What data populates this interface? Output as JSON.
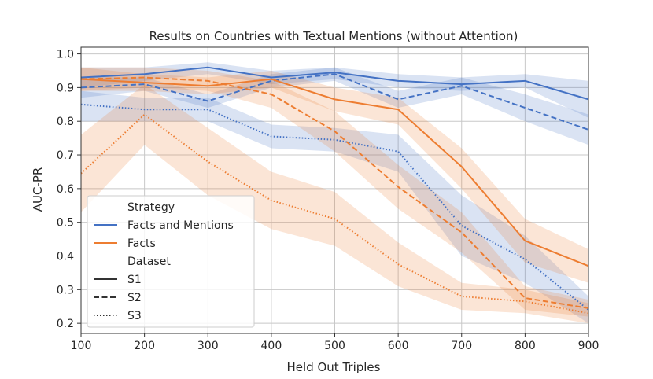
{
  "chart_data": {
    "type": "line",
    "title": "Results on Countries with Textual Mentions (without Attention)",
    "xlabel": "Held Out Triples",
    "ylabel": "AUC-PR",
    "x": [
      100,
      200,
      300,
      400,
      500,
      600,
      700,
      800,
      900
    ],
    "xlim": [
      100,
      900
    ],
    "ylim": [
      0.17,
      1.02
    ],
    "xticks": [
      "100",
      "200",
      "300",
      "400",
      "500",
      "600",
      "700",
      "800",
      "900"
    ],
    "yticks": [
      "0.2",
      "0.3",
      "0.4",
      "0.5",
      "0.6",
      "0.7",
      "0.8",
      "0.9",
      "1.0"
    ],
    "grid": true,
    "legend": {
      "position": "lower-left",
      "strategy_title": "Strategy",
      "dataset_title": "Dataset",
      "strategy_entries": [
        {
          "label": "Facts and Mentions",
          "color": "#4472c4"
        },
        {
          "label": "Facts",
          "color": "#ed7d31"
        }
      ],
      "dataset_entries": [
        {
          "label": "S1",
          "dash": "solid"
        },
        {
          "label": "S2",
          "dash": "dashed"
        },
        {
          "label": "S3",
          "dash": "dotted"
        }
      ]
    },
    "colors": {
      "facts_and_mentions": "#4472c4",
      "facts": "#ed7d31"
    },
    "series": [
      {
        "strategy": "Facts and Mentions",
        "dataset": "S1",
        "color": "#4472c4",
        "dash": "solid",
        "values": [
          0.93,
          0.94,
          0.96,
          0.93,
          0.945,
          0.92,
          0.91,
          0.92,
          0.865
        ],
        "lower": [
          0.9,
          0.92,
          0.94,
          0.91,
          0.925,
          0.9,
          0.89,
          0.9,
          0.81
        ],
        "upper": [
          0.96,
          0.96,
          0.975,
          0.95,
          0.96,
          0.94,
          0.93,
          0.94,
          0.92
        ]
      },
      {
        "strategy": "Facts and Mentions",
        "dataset": "S2",
        "color": "#4472c4",
        "dash": "dashed",
        "values": [
          0.9,
          0.91,
          0.86,
          0.92,
          0.94,
          0.865,
          0.905,
          0.84,
          0.775
        ],
        "lower": [
          0.87,
          0.89,
          0.84,
          0.9,
          0.92,
          0.84,
          0.88,
          0.8,
          0.73
        ],
        "upper": [
          0.93,
          0.93,
          0.88,
          0.94,
          0.96,
          0.89,
          0.93,
          0.88,
          0.82
        ]
      },
      {
        "strategy": "Facts and Mentions",
        "dataset": "S3",
        "color": "#4472c4",
        "dash": "dotted",
        "values": [
          0.85,
          0.835,
          0.835,
          0.755,
          0.745,
          0.71,
          0.49,
          0.39,
          0.24
        ],
        "lower": [
          0.8,
          0.8,
          0.8,
          0.72,
          0.71,
          0.65,
          0.4,
          0.32,
          0.2
        ],
        "upper": [
          0.89,
          0.87,
          0.87,
          0.79,
          0.78,
          0.76,
          0.58,
          0.46,
          0.28
        ]
      },
      {
        "strategy": "Facts",
        "dataset": "S1",
        "color": "#ed7d31",
        "dash": "solid",
        "values": [
          0.925,
          0.915,
          0.905,
          0.925,
          0.865,
          0.835,
          0.665,
          0.445,
          0.37
        ],
        "lower": [
          0.89,
          0.89,
          0.88,
          0.9,
          0.83,
          0.79,
          0.6,
          0.38,
          0.32
        ],
        "upper": [
          0.96,
          0.94,
          0.93,
          0.95,
          0.9,
          0.87,
          0.72,
          0.51,
          0.42
        ]
      },
      {
        "strategy": "Facts",
        "dataset": "S2",
        "color": "#ed7d31",
        "dash": "dashed",
        "values": [
          0.925,
          0.93,
          0.92,
          0.88,
          0.77,
          0.605,
          0.47,
          0.275,
          0.245
        ],
        "lower": [
          0.89,
          0.9,
          0.89,
          0.84,
          0.71,
          0.54,
          0.41,
          0.24,
          0.22
        ],
        "upper": [
          0.96,
          0.96,
          0.95,
          0.92,
          0.83,
          0.67,
          0.53,
          0.31,
          0.27
        ]
      },
      {
        "strategy": "Facts",
        "dataset": "S3",
        "color": "#ed7d31",
        "dash": "dotted",
        "values": [
          0.645,
          0.82,
          0.68,
          0.565,
          0.51,
          0.375,
          0.28,
          0.265,
          0.23
        ],
        "lower": [
          0.53,
          0.73,
          0.58,
          0.48,
          0.43,
          0.31,
          0.24,
          0.23,
          0.2
        ],
        "upper": [
          0.76,
          0.91,
          0.78,
          0.65,
          0.59,
          0.44,
          0.32,
          0.3,
          0.26
        ]
      }
    ]
  }
}
